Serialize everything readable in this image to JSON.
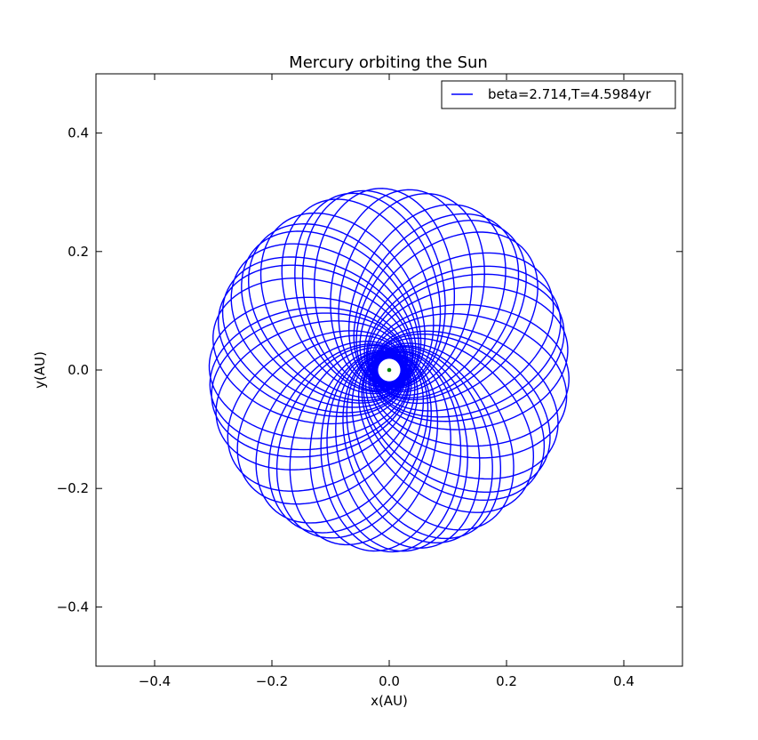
{
  "chart_data": {
    "type": "line",
    "title": "Mercury orbiting the Sun",
    "xlabel": "x(AU)",
    "ylabel": "y(AU)",
    "xlim": [
      -0.5,
      0.5
    ],
    "ylim": [
      -0.5,
      0.5
    ],
    "xticks": [
      -0.4,
      -0.2,
      0.0,
      0.2,
      0.4
    ],
    "yticks": [
      -0.4,
      -0.2,
      0.0,
      0.2,
      0.4
    ],
    "xtick_labels": [
      "−0.4",
      "−0.2",
      "0.0",
      "0.2",
      "0.4"
    ],
    "ytick_labels": [
      "−0.4",
      "−0.2",
      "0.0",
      "0.2",
      "0.4"
    ],
    "legend_position": "top-right",
    "grid": false,
    "series": [
      {
        "name": "beta=2.714,T=4.5984yr",
        "color": "#0000ff",
        "kind": "precessing orbit",
        "aphelion": 0.307,
        "perihelion": 0.02,
        "orbits": 44
      }
    ],
    "sun": {
      "x": 0.0,
      "y": 0.0,
      "color": "#008000"
    }
  }
}
